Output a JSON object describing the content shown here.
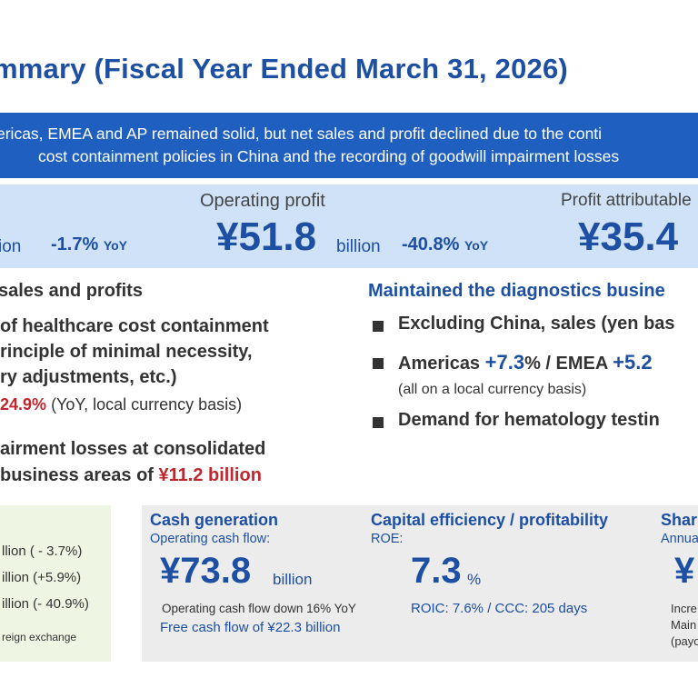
{
  "title": "mmary (Fiscal Year Ended March 31, 2026)",
  "banner": {
    "line1": "ericas, EMEA and AP remained solid, but net sales and profit declined due to the conti",
    "line2": "cost containment policies in China and the recording of goodwill impairment losses"
  },
  "kpis": {
    "left": {
      "unit": "ion",
      "yoy": "-1.7%",
      "yoy_suffix": "YoY"
    },
    "operating_profit": {
      "label": "Operating profit",
      "value": "¥51.8",
      "unit": "billion",
      "yoy": "-40.8%",
      "yoy_suffix": "YoY"
    },
    "profit_attr": {
      "label": "Profit attributable",
      "value": "¥35.4"
    }
  },
  "left_section": {
    "heading": "sales and profits",
    "line1": "of healthcare cost containment",
    "line2": "rinciple of minimal necessity,",
    "line3": "ry adjustments, etc.)",
    "pct": "24.9%",
    "pct_note": "(YoY, local currency basis)",
    "line4": "airment losses at consolidated",
    "line5_prefix": "business areas of",
    "line5_value": "¥11.2 billion"
  },
  "right_section": {
    "heading": "Maintained the diagnostics busine",
    "bullet1": "Excluding China, sales (yen bas",
    "bullet2_a": "Americas",
    "bullet2_b": "+7.3",
    "bullet2_c": "% / EMEA",
    "bullet2_d": "+5.2",
    "bullet2_note": "(all on a local currency basis)",
    "bullet3": "Demand for hematology testin"
  },
  "green_panel": {
    "row1": "llion  ( - 3.7%)",
    "row2": "illion  (+5.9%)",
    "row3": "illion (- 40.9%)",
    "note": "reign exchange"
  },
  "cash": {
    "heading": "Cash generation",
    "sub": "Operating cash flow:",
    "value": "¥73.8",
    "unit": "billion",
    "note1": "Operating cash flow down 16% YoY",
    "note2": "Free cash flow of ¥22.3 billion"
  },
  "capital": {
    "heading": "Capital efficiency / profitability",
    "sub": "ROE:",
    "value": "7.3",
    "unit": "%",
    "note": "ROIC: 7.6% / CCC: 205 days"
  },
  "share": {
    "heading": "Shar",
    "sub": "Annua",
    "value": "¥",
    "note1": "Incre",
    "note2": "Main",
    "note3": "(payo"
  }
}
